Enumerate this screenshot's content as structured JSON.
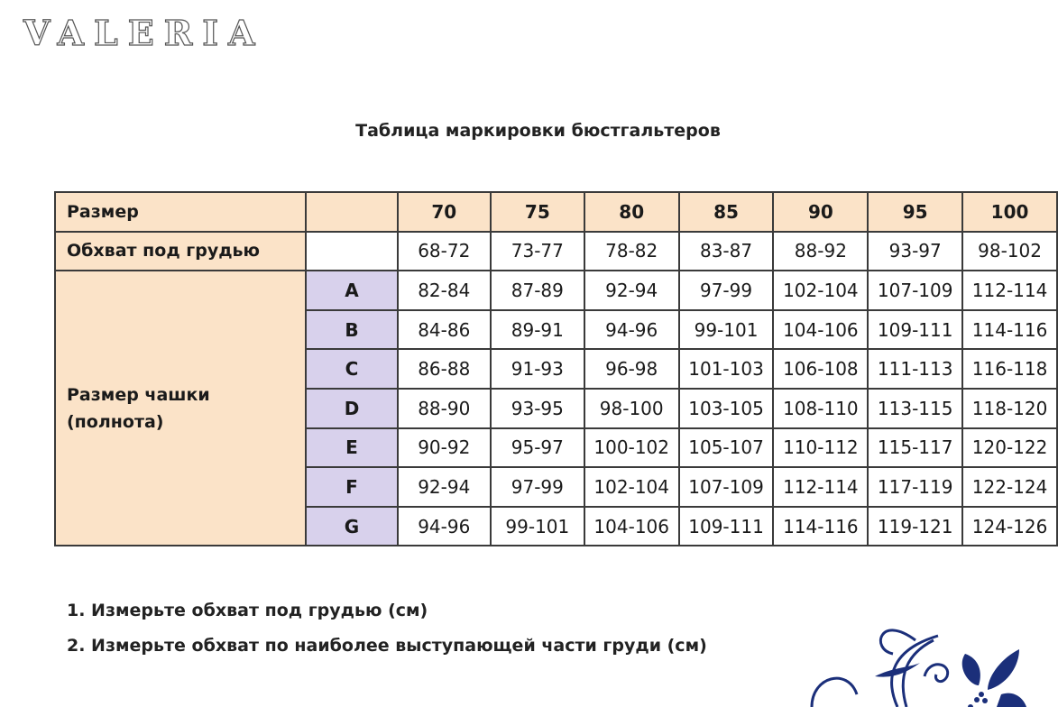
{
  "logo": "VALERIA",
  "title": "Таблица маркировки бюстгальтеров",
  "table": {
    "size_label": "Размер",
    "underbust_label": "Обхват под грудью",
    "cup_label": "Размер чашки (полнота)",
    "sizes": [
      "70",
      "75",
      "80",
      "85",
      "90",
      "95",
      "100"
    ],
    "underbust": [
      "68-72",
      "73-77",
      "78-82",
      "83-87",
      "88-92",
      "93-97",
      "98-102"
    ],
    "cups": [
      {
        "letter": "A",
        "values": [
          "82-84",
          "87-89",
          "92-94",
          "97-99",
          "102-104",
          "107-109",
          "112-114"
        ]
      },
      {
        "letter": "B",
        "values": [
          "84-86",
          "89-91",
          "94-96",
          "99-101",
          "104-106",
          "109-111",
          "114-116"
        ]
      },
      {
        "letter": "C",
        "values": [
          "86-88",
          "91-93",
          "96-98",
          "101-103",
          "106-108",
          "111-113",
          "116-118"
        ]
      },
      {
        "letter": "D",
        "values": [
          "88-90",
          "93-95",
          "98-100",
          "103-105",
          "108-110",
          "113-115",
          "118-120"
        ]
      },
      {
        "letter": "E",
        "values": [
          "90-92",
          "95-97",
          "100-102",
          "105-107",
          "110-112",
          "115-117",
          "120-122"
        ]
      },
      {
        "letter": "F",
        "values": [
          "92-94",
          "97-99",
          "102-104",
          "107-109",
          "112-114",
          "117-119",
          "122-124"
        ]
      },
      {
        "letter": "G",
        "values": [
          "94-96",
          "99-101",
          "104-106",
          "109-111",
          "114-116",
          "119-121",
          "124-126"
        ]
      }
    ]
  },
  "notes": [
    "1. Измерьте обхват под грудью (см)",
    "2. Измерьте обхват по наиболее выступающей части груди (см)"
  ],
  "colors": {
    "header": "#fbe3c8",
    "cup_letter": "#d8d1ec",
    "ornament": "#1b2f7a"
  }
}
